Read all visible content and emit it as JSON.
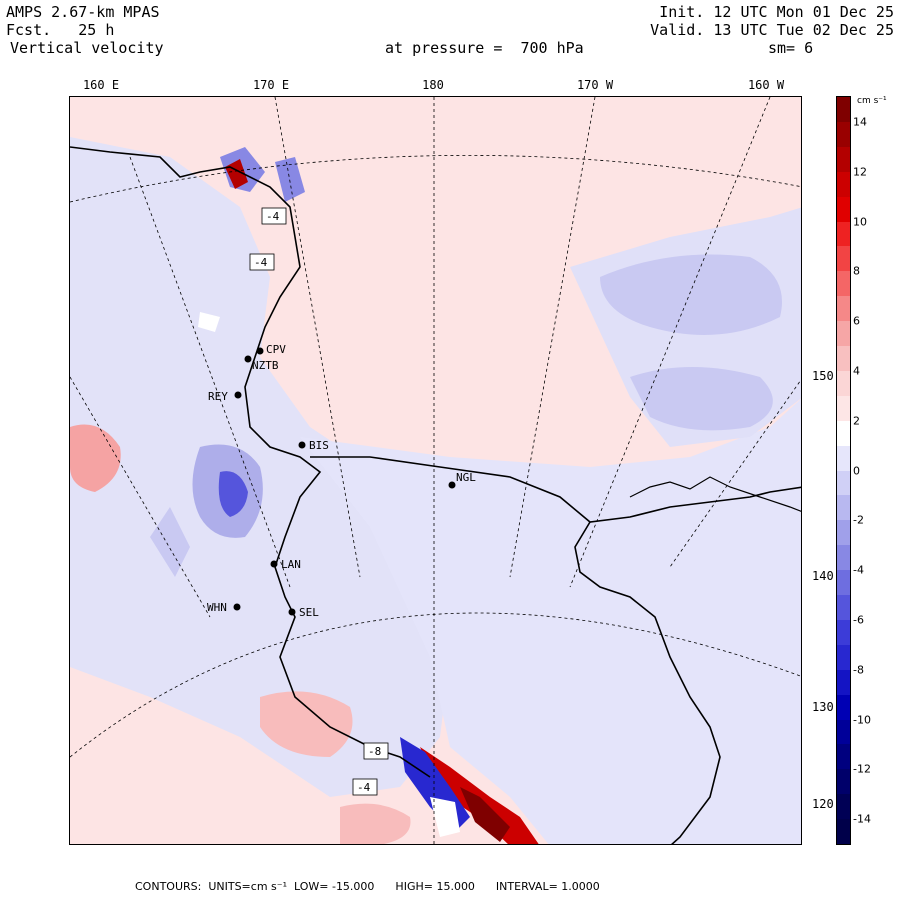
{
  "header": {
    "model": "AMPS 2.67-km MPAS",
    "forecast_label": "Fcst.",
    "forecast_hours": "25 h",
    "field": "Vertical velocity",
    "init": "Init. 12 UTC Mon 01 Dec 25",
    "valid": "Valid. 13 UTC Tue 02 Dec 25",
    "pressure_label": "at pressure =",
    "pressure": "700 hPa",
    "smoothing": "sm= 6"
  },
  "longitude_labels": [
    "160 E",
    "170 E",
    "180",
    "170 W",
    "160 W"
  ],
  "latitude_labels": [
    "150 W",
    "140 W",
    "130 W",
    "120 W"
  ],
  "stations": [
    "CPV",
    "NZTB",
    "REY",
    "BIS",
    "NGL",
    "LAN",
    "WHN",
    "SEL"
  ],
  "contour_labels": [
    "-4",
    "-4",
    "-8",
    "-4"
  ],
  "colorbar": {
    "unit": "cm s⁻¹",
    "ticks": [
      "14",
      "12",
      "10",
      "8",
      "6",
      "4",
      "2",
      "0",
      "-2",
      "-4",
      "-6",
      "-8",
      "-10",
      "-12",
      "-14"
    ],
    "colors": [
      "#7f0000",
      "#990000",
      "#b30000",
      "#cc0000",
      "#e00000",
      "#ee2222",
      "#f24444",
      "#f46666",
      "#f58888",
      "#f6a6a6",
      "#f8c0c0",
      "#fbd6d6",
      "#fde6e6",
      "#ffffff",
      "#e6e6fb",
      "#d0d0f6",
      "#b8b8f0",
      "#a0a0ea",
      "#8888e4",
      "#6e6ee0",
      "#5555dc",
      "#3c3cd8",
      "#2828d0",
      "#1414c4",
      "#0000b4",
      "#000099",
      "#00007f",
      "#00006a",
      "#000055",
      "#00004a"
    ]
  },
  "footer": {
    "contours": "CONTOURS:",
    "units": "UNITS=cm s⁻¹",
    "low": "LOW= -15.000",
    "high": "HIGH= 15.000",
    "interval": "INTERVAL= 1.0000"
  }
}
